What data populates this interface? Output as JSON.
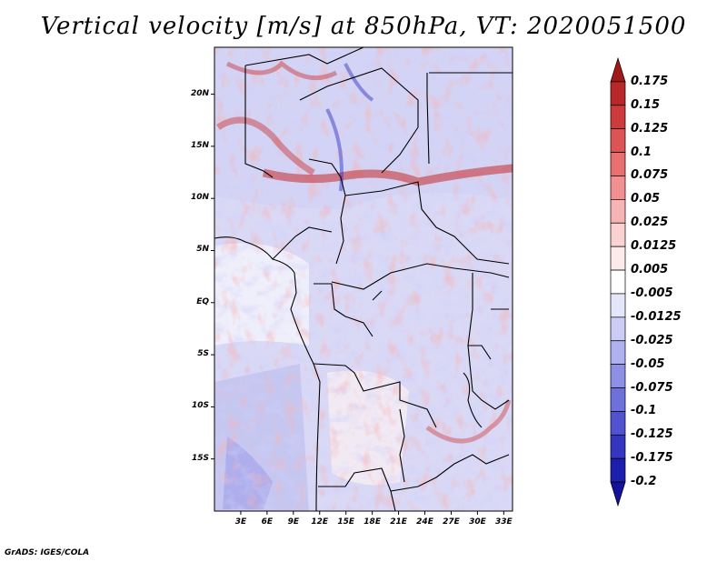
{
  "title": "Vertical velocity [m/s] at 850hPa, VT: 2020051500",
  "credit": "GrADS: IGES/COLA",
  "lat_labels": [
    {
      "text": "20N",
      "lat": 20
    },
    {
      "text": "15N",
      "lat": 15
    },
    {
      "text": "10N",
      "lat": 10
    },
    {
      "text": "5N",
      "lat": 5
    },
    {
      "text": "EQ",
      "lat": 0
    },
    {
      "text": "5S",
      "lat": -5
    },
    {
      "text": "10S",
      "lat": -10
    },
    {
      "text": "15S",
      "lat": -15
    }
  ],
  "lon_labels": [
    {
      "text": "3E",
      "lon": 3
    },
    {
      "text": "6E",
      "lon": 6
    },
    {
      "text": "9E",
      "lon": 9
    },
    {
      "text": "12E",
      "lon": 12
    },
    {
      "text": "15E",
      "lon": 15
    },
    {
      "text": "18E",
      "lon": 18
    },
    {
      "text": "21E",
      "lon": 21
    },
    {
      "text": "24E",
      "lon": 24
    },
    {
      "text": "27E",
      "lon": 27
    },
    {
      "text": "30E",
      "lon": 30
    },
    {
      "text": "33E",
      "lon": 33
    }
  ],
  "colorbar": {
    "labels": [
      "0.175",
      "0.15",
      "0.125",
      "0.1",
      "0.075",
      "0.05",
      "0.025",
      "0.0125",
      "0.005",
      "-0.005",
      "-0.0125",
      "-0.025",
      "-0.05",
      "-0.075",
      "-0.1",
      "-0.125",
      "-0.175",
      "-0.2"
    ],
    "colors": [
      "#a01818",
      "#b82828",
      "#cc3c3c",
      "#dc5454",
      "#e87070",
      "#f09090",
      "#f6b4b4",
      "#fad2d2",
      "#fdeaea",
      "#ffffff",
      "#e6e6fa",
      "#cccdf5",
      "#aeb0ef",
      "#8e90e6",
      "#6e70dc",
      "#5052cf",
      "#3436bf",
      "#1e1eac",
      "#13129a"
    ]
  },
  "map_extent": {
    "lon_min": 0,
    "lon_max": 34,
    "lat_min": -20,
    "lat_max": 24.5
  }
}
